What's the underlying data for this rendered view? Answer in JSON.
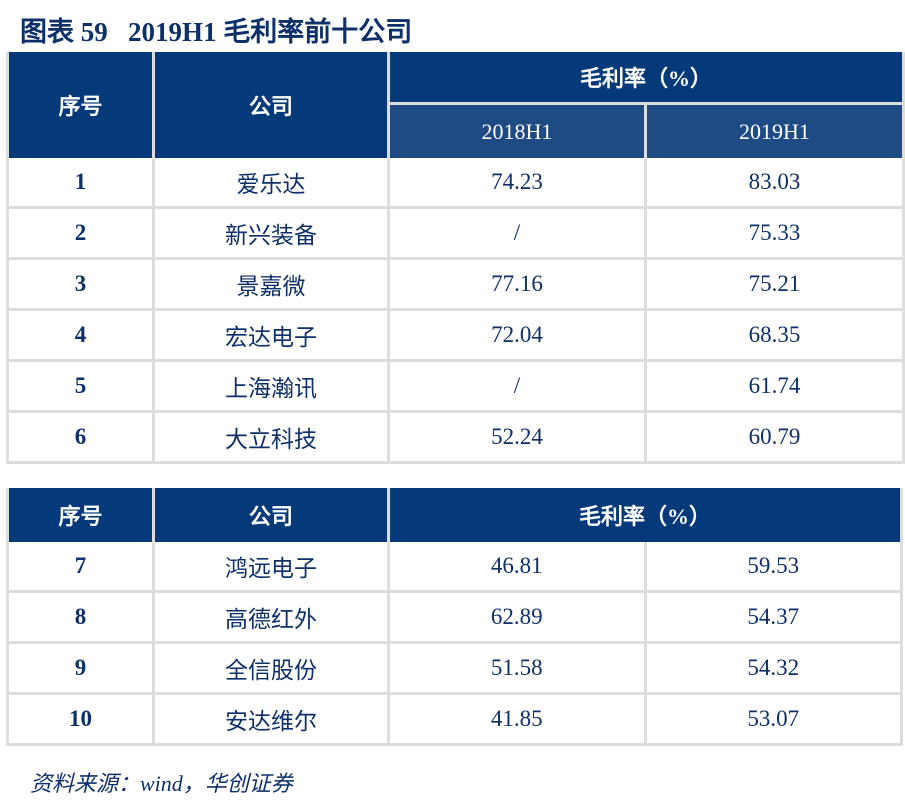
{
  "title": "图表 59   2019H1 毛利率前十公司",
  "header": {
    "index": "序号",
    "company": "公司",
    "margin": "毛利率（%）",
    "y2018": "2018H1",
    "y2019": "2019H1"
  },
  "rows1": [
    {
      "no": "1",
      "company": "爱乐达",
      "y2018": "74.23",
      "y2019": "83.03"
    },
    {
      "no": "2",
      "company": "新兴装备",
      "y2018": "/",
      "y2019": "75.33"
    },
    {
      "no": "3",
      "company": "景嘉微",
      "y2018": "77.16",
      "y2019": "75.21"
    },
    {
      "no": "4",
      "company": "宏达电子",
      "y2018": "72.04",
      "y2019": "68.35"
    },
    {
      "no": "5",
      "company": "上海瀚讯",
      "y2018": "/",
      "y2019": "61.74"
    },
    {
      "no": "6",
      "company": "大立科技",
      "y2018": "52.24",
      "y2019": "60.79"
    }
  ],
  "rows2": [
    {
      "no": "7",
      "company": "鸿远电子",
      "y2018": "46.81",
      "y2019": "59.53"
    },
    {
      "no": "8",
      "company": "高德红外",
      "y2018": "62.89",
      "y2019": "54.37"
    },
    {
      "no": "9",
      "company": "全信股份",
      "y2018": "51.58",
      "y2019": "54.32"
    },
    {
      "no": "10",
      "company": "安达维尔",
      "y2018": "41.85",
      "y2019": "53.07"
    }
  ],
  "source": "资料来源：wind，华创证券"
}
